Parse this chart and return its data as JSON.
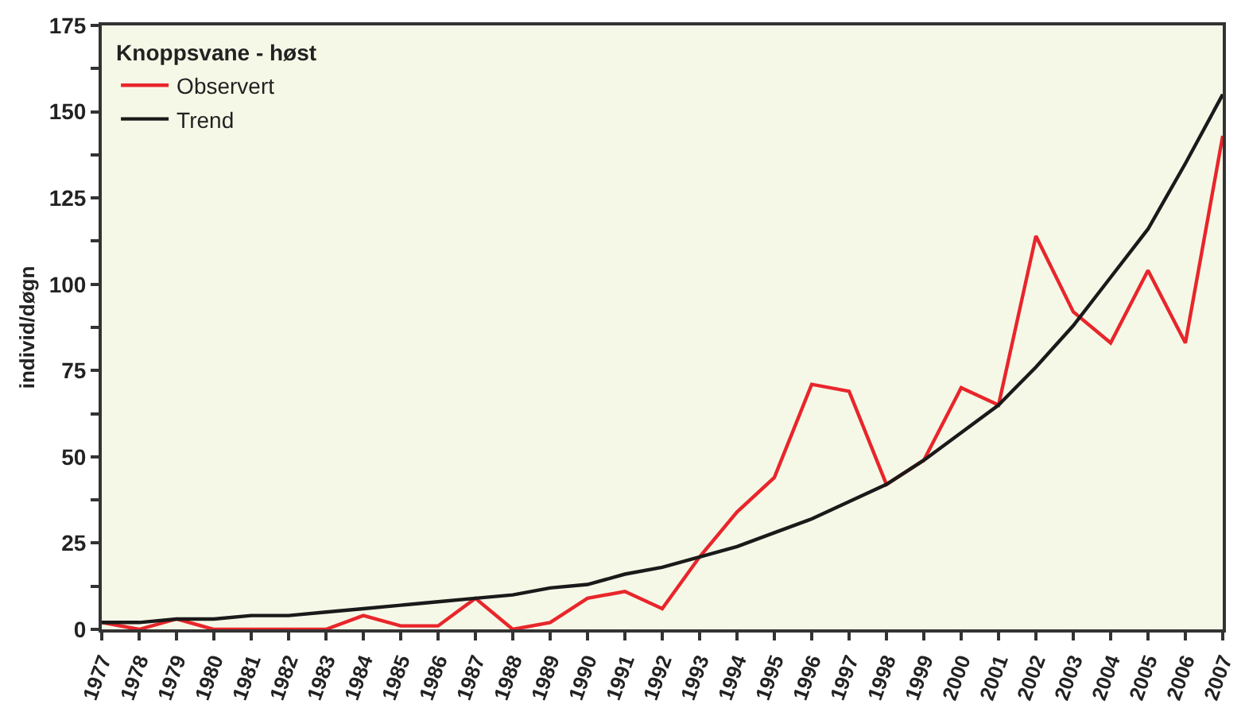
{
  "chart_data": {
    "type": "line",
    "legend_title": "Knoppsvane - høst",
    "ylabel": "individ/døgn",
    "categories": [
      "1977",
      "1978",
      "1979",
      "1980",
      "1981",
      "1982",
      "1983",
      "1984",
      "1985",
      "1986",
      "1987",
      "1988",
      "1989",
      "1990",
      "1991",
      "1992",
      "1993",
      "1994",
      "1995",
      "1996",
      "1997",
      "1998",
      "1999",
      "2000",
      "2001",
      "2002",
      "2003",
      "2004",
      "2005",
      "2006",
      "2007"
    ],
    "series": [
      {
        "name": "Observert",
        "color": "#e8262b",
        "values": [
          2,
          0,
          3,
          0,
          0,
          0,
          0,
          4,
          1,
          1,
          9,
          0,
          2,
          9,
          11,
          6,
          21,
          34,
          44,
          71,
          69,
          42,
          49,
          70,
          65,
          114,
          92,
          83,
          104,
          83,
          143
        ]
      },
      {
        "name": "Trend",
        "color": "#1a1a1a",
        "values": [
          2,
          2,
          3,
          3,
          4,
          4,
          5,
          6,
          7,
          8,
          9,
          10,
          12,
          13,
          16,
          18,
          21,
          24,
          28,
          32,
          37,
          42,
          49,
          57,
          65,
          76,
          88,
          102,
          116,
          135,
          155
        ]
      }
    ],
    "ylim": [
      0,
      175
    ],
    "yticks": [
      0,
      {
        "value": 12.5,
        "label": null
      },
      25,
      {
        "value": 37.5,
        "label": null
      },
      50,
      {
        "value": 62.5,
        "label": null
      },
      75,
      {
        "value": 87.5,
        "label": null
      },
      100,
      {
        "value": 112.5,
        "label": null
      },
      125,
      {
        "value": 137.5,
        "label": null
      },
      150,
      {
        "value": 162.5,
        "label": null
      },
      175
    ],
    "grid": false,
    "legend": "top left",
    "marker": "none",
    "line_style": "solid"
  }
}
